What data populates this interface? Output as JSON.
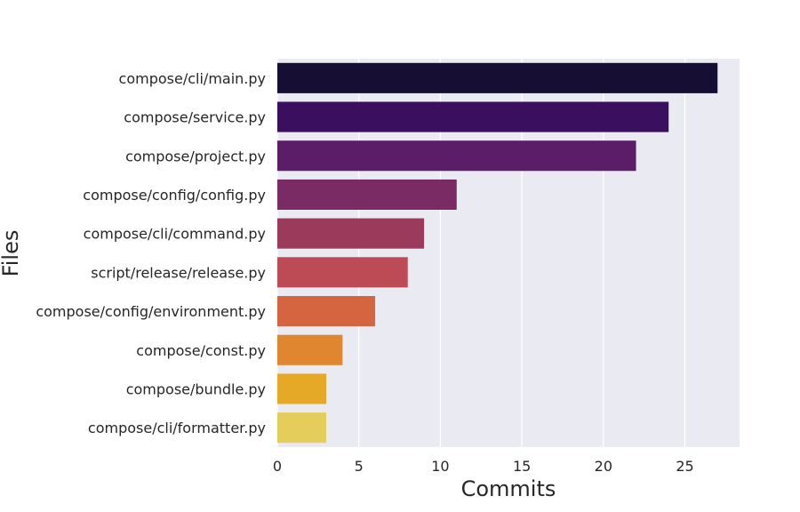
{
  "chart_data": {
    "type": "bar",
    "orientation": "horizontal",
    "xlabel": "Commits",
    "ylabel": "Files",
    "categories": [
      "compose/cli/main.py",
      "compose/service.py",
      "compose/project.py",
      "compose/config/config.py",
      "compose/cli/command.py",
      "script/release/release.py",
      "compose/config/environment.py",
      "compose/const.py",
      "compose/bundle.py",
      "compose/cli/formatter.py"
    ],
    "values": [
      27,
      24,
      22,
      11,
      9,
      8,
      6,
      4,
      3,
      3
    ],
    "xlim": [
      0,
      28.35
    ],
    "xticks": [
      "0",
      "5",
      "10",
      "15",
      "20",
      "25"
    ],
    "grid": true,
    "background": "#eaeaf2",
    "colors": [
      "#160f33",
      "#3a0f5f",
      "#5b1d68",
      "#7b2b63",
      "#9c3a5c",
      "#bd4b55",
      "#d56541",
      "#e08630",
      "#e6a827",
      "#e4cd5a"
    ]
  }
}
